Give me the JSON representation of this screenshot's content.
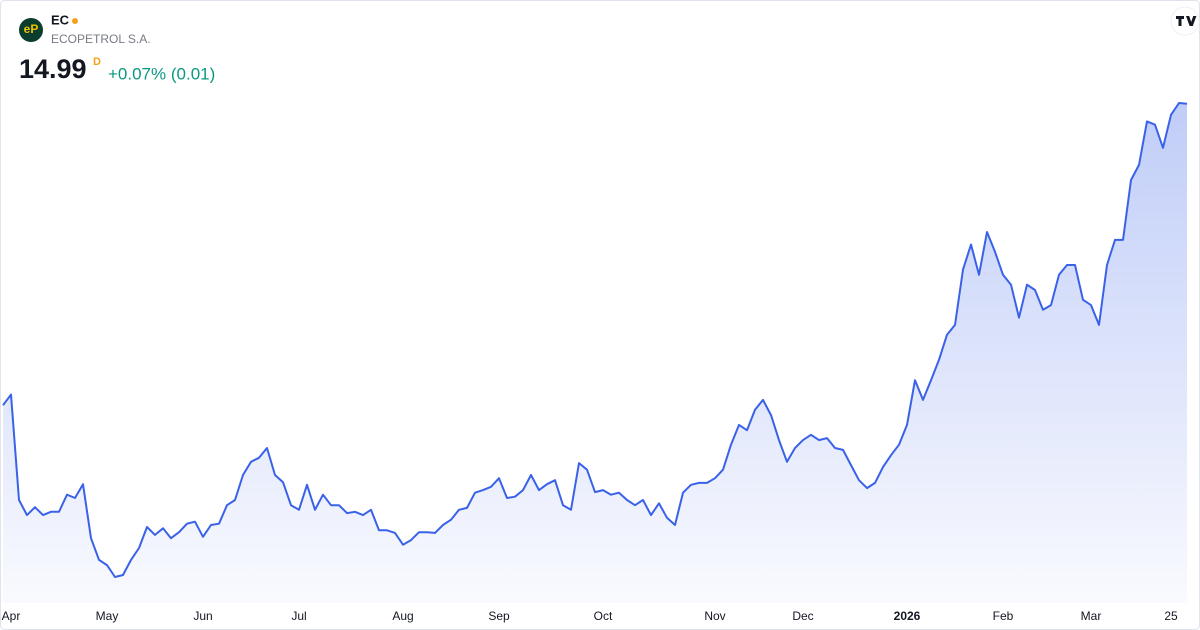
{
  "header": {
    "logo_text": "eP",
    "symbol": "EC",
    "name": "ECOPETROL S.A.",
    "price": "14.99",
    "interval": "D",
    "change": "+0.07% (0.01)"
  },
  "chart_data": {
    "type": "area",
    "color": "#3a62e8",
    "values": [
      10.41,
      10.57,
      8.97,
      8.74,
      8.86,
      8.74,
      8.79,
      8.79,
      9.05,
      9.0,
      9.21,
      8.39,
      8.06,
      7.98,
      7.8,
      7.83,
      8.06,
      8.24,
      8.56,
      8.44,
      8.54,
      8.39,
      8.48,
      8.61,
      8.64,
      8.41,
      8.59,
      8.61,
      8.89,
      8.97,
      9.35,
      9.55,
      9.61,
      9.76,
      9.35,
      9.24,
      8.89,
      8.82,
      9.2,
      8.82,
      9.05,
      8.89,
      8.89,
      8.77,
      8.79,
      8.74,
      8.82,
      8.51,
      8.51,
      8.47,
      8.29,
      8.36,
      8.48,
      8.48,
      8.47,
      8.59,
      8.67,
      8.82,
      8.85,
      9.08,
      9.12,
      9.17,
      9.3,
      9.0,
      9.02,
      9.12,
      9.35,
      9.12,
      9.21,
      9.27,
      8.89,
      8.82,
      9.53,
      9.43,
      9.09,
      9.12,
      9.05,
      9.08,
      8.97,
      8.89,
      8.97,
      8.74,
      8.92,
      8.7,
      8.59,
      9.08,
      9.2,
      9.23,
      9.23,
      9.3,
      9.43,
      9.81,
      10.11,
      10.03,
      10.34,
      10.49,
      10.26,
      9.88,
      9.55,
      9.76,
      9.88,
      9.96,
      9.88,
      9.91,
      9.76,
      9.73,
      9.5,
      9.27,
      9.15,
      9.23,
      9.47,
      9.65,
      9.81,
      10.11,
      10.79,
      10.49,
      10.79,
      11.1,
      11.48,
      11.63,
      12.47,
      12.85,
      12.39,
      13.04,
      12.74,
      12.39,
      12.24,
      11.74,
      12.24,
      12.16,
      11.86,
      11.93,
      12.39,
      12.54,
      12.54,
      12.01,
      11.93,
      11.63,
      12.54,
      12.92,
      12.92,
      13.83,
      14.06,
      14.72,
      14.67,
      14.32,
      14.82,
      15.0,
      14.99
    ],
    "categories": [
      null,
      "Apr",
      null,
      null,
      null,
      null,
      null,
      null,
      null,
      null,
      null,
      null,
      null,
      "May",
      null,
      null,
      null,
      null,
      null,
      null,
      null,
      null,
      null,
      null,
      null,
      "Jun",
      null,
      null,
      null,
      null,
      null,
      null,
      null,
      null,
      null,
      null,
      null,
      "Jul",
      null,
      null,
      null,
      null,
      null,
      null,
      null,
      null,
      null,
      null,
      null,
      null,
      "Aug",
      null,
      null,
      null,
      null,
      null,
      null,
      null,
      null,
      null,
      null,
      null,
      "Sep",
      null,
      null,
      null,
      null,
      null,
      null,
      null,
      null,
      null,
      null,
      null,
      null,
      "Oct",
      null,
      null,
      null,
      null,
      null,
      null,
      null,
      null,
      null,
      null,
      null,
      null,
      null,
      "Nov",
      null,
      null,
      null,
      null,
      null,
      null,
      null,
      null,
      null,
      null,
      "Dec",
      null,
      null,
      null,
      null,
      null,
      null,
      null,
      null,
      null,
      null,
      null,
      null,
      "2026",
      null,
      null,
      null,
      null,
      null,
      null,
      null,
      null,
      null,
      null,
      null,
      "Feb",
      null,
      null,
      null,
      null,
      null,
      null,
      null,
      null,
      null,
      null,
      "Mar",
      null,
      null,
      null,
      null,
      null,
      null,
      null,
      null,
      null,
      "25",
      null,
      null
    ]
  }
}
